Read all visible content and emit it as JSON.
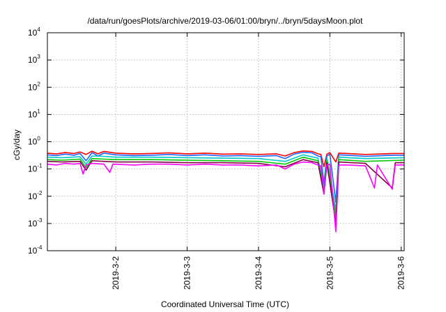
{
  "chart_data": {
    "type": "line",
    "title": "/data/run/goesPlots/archive/2019-03-06/01:00/bryn/../bryn/5daysMoon.plot",
    "xlabel": "Coordinated Universal Time (UTC)",
    "ylabel": "cGy/day",
    "y_scale": "log",
    "ylim": [
      0.0001,
      10000
    ],
    "y_ticks": [
      {
        "base": "10",
        "exp": "4",
        "value": 10000
      },
      {
        "base": "10",
        "exp": "3",
        "value": 1000
      },
      {
        "base": "10",
        "exp": "2",
        "value": 100
      },
      {
        "base": "10",
        "exp": "1",
        "value": 10
      },
      {
        "base": "10",
        "exp": "0",
        "value": 1
      },
      {
        "base": "10",
        "exp": "-1",
        "value": 0.1
      },
      {
        "base": "10",
        "exp": "-2",
        "value": 0.01
      },
      {
        "base": "10",
        "exp": "-3",
        "value": 0.001
      },
      {
        "base": "10",
        "exp": "-4",
        "value": 0.0001
      }
    ],
    "xlim": [
      "2019-03-01 01:00",
      "2019-03-06 01:00"
    ],
    "x_ticks": [
      {
        "label": "2019-3-2",
        "value": "2019-03-02 00:00"
      },
      {
        "label": "2019-3-3",
        "value": "2019-03-03 00:00"
      },
      {
        "label": "2019-3-4",
        "value": "2019-03-04 00:00"
      },
      {
        "label": "2019-3-5",
        "value": "2019-03-05 00:00"
      },
      {
        "label": "2019-3-6",
        "value": "2019-03-06 00:00"
      }
    ],
    "grid": true,
    "series": [
      {
        "color": "#ff0000",
        "points": [
          [
            "2019-03-01 01:00",
            0.38
          ],
          [
            "2019-03-01 04:00",
            0.36
          ],
          [
            "2019-03-01 07:00",
            0.4
          ],
          [
            "2019-03-01 10:00",
            0.37
          ],
          [
            "2019-03-01 12:00",
            0.42
          ],
          [
            "2019-03-01 14:00",
            0.34
          ],
          [
            "2019-03-01 16:00",
            0.45
          ],
          [
            "2019-03-01 18:00",
            0.36
          ],
          [
            "2019-03-01 20:00",
            0.44
          ],
          [
            "2019-03-02 00:00",
            0.38
          ],
          [
            "2019-03-02 06:00",
            0.36
          ],
          [
            "2019-03-02 12:00",
            0.37
          ],
          [
            "2019-03-02 18:00",
            0.39
          ],
          [
            "2019-03-03 00:00",
            0.36
          ],
          [
            "2019-03-03 06:00",
            0.38
          ],
          [
            "2019-03-03 12:00",
            0.35
          ],
          [
            "2019-03-03 18:00",
            0.36
          ],
          [
            "2019-03-04 00:00",
            0.34
          ],
          [
            "2019-03-04 06:00",
            0.36
          ],
          [
            "2019-03-04 09:00",
            0.3
          ],
          [
            "2019-03-04 12:00",
            0.4
          ],
          [
            "2019-03-04 15:00",
            0.46
          ],
          [
            "2019-03-04 18:00",
            0.44
          ],
          [
            "2019-03-04 20:00",
            0.36
          ],
          [
            "2019-03-04 21:00",
            0.34
          ],
          [
            "2019-03-04 22:00",
            0.12
          ],
          [
            "2019-03-04 23:00",
            0.35
          ],
          [
            "2019-03-05 00:00",
            0.4
          ],
          [
            "2019-03-05 02:00",
            0.18
          ],
          [
            "2019-03-05 03:00",
            0.38
          ],
          [
            "2019-03-05 06:00",
            0.37
          ],
          [
            "2019-03-05 12:00",
            0.34
          ],
          [
            "2019-03-05 18:00",
            0.36
          ],
          [
            "2019-03-05 21:00",
            0.37
          ],
          [
            "2019-03-06 01:00",
            0.37
          ]
        ]
      },
      {
        "color": "#1e64ff",
        "points": [
          [
            "2019-03-01 01:00",
            0.33
          ],
          [
            "2019-03-01 04:00",
            0.31
          ],
          [
            "2019-03-01 07:00",
            0.35
          ],
          [
            "2019-03-01 10:00",
            0.32
          ],
          [
            "2019-03-01 12:00",
            0.37
          ],
          [
            "2019-03-01 14:00",
            0.2
          ],
          [
            "2019-03-01 16:00",
            0.4
          ],
          [
            "2019-03-01 18:00",
            0.3
          ],
          [
            "2019-03-01 20:00",
            0.38
          ],
          [
            "2019-03-02 00:00",
            0.33
          ],
          [
            "2019-03-02 06:00",
            0.31
          ],
          [
            "2019-03-02 12:00",
            0.32
          ],
          [
            "2019-03-02 18:00",
            0.34
          ],
          [
            "2019-03-03 00:00",
            0.31
          ],
          [
            "2019-03-03 06:00",
            0.33
          ],
          [
            "2019-03-03 12:00",
            0.3
          ],
          [
            "2019-03-03 18:00",
            0.31
          ],
          [
            "2019-03-04 00:00",
            0.29
          ],
          [
            "2019-03-04 06:00",
            0.31
          ],
          [
            "2019-03-04 09:00",
            0.24
          ],
          [
            "2019-03-04 12:00",
            0.35
          ],
          [
            "2019-03-04 15:00",
            0.41
          ],
          [
            "2019-03-04 18:00",
            0.39
          ],
          [
            "2019-03-04 20:00",
            0.3
          ],
          [
            "2019-03-04 21:00",
            0.28
          ],
          [
            "2019-03-04 22:00",
            0.03
          ],
          [
            "2019-03-04 23:00",
            0.3
          ],
          [
            "2019-03-05 00:00",
            0.35
          ],
          [
            "2019-03-05 02:00",
            0.006
          ],
          [
            "2019-03-05 03:00",
            0.33
          ],
          [
            "2019-03-05 06:00",
            0.32
          ],
          [
            "2019-03-05 12:00",
            0.29
          ],
          [
            "2019-03-05 18:00",
            0.31
          ],
          [
            "2019-03-05 21:00",
            0.32
          ],
          [
            "2019-03-06 01:00",
            0.32
          ]
        ]
      },
      {
        "color": "#00c8c8",
        "points": [
          [
            "2019-03-01 01:00",
            0.27
          ],
          [
            "2019-03-01 06:00",
            0.26
          ],
          [
            "2019-03-01 12:00",
            0.28
          ],
          [
            "2019-03-01 14:00",
            0.15
          ],
          [
            "2019-03-01 16:00",
            0.3
          ],
          [
            "2019-03-01 20:00",
            0.29
          ],
          [
            "2019-03-02 00:00",
            0.27
          ],
          [
            "2019-03-02 12:00",
            0.27
          ],
          [
            "2019-03-03 00:00",
            0.26
          ],
          [
            "2019-03-03 12:00",
            0.25
          ],
          [
            "2019-03-04 00:00",
            0.24
          ],
          [
            "2019-03-04 09:00",
            0.19
          ],
          [
            "2019-03-04 15:00",
            0.33
          ],
          [
            "2019-03-04 20:00",
            0.25
          ],
          [
            "2019-03-04 22:00",
            0.02
          ],
          [
            "2019-03-04 23:00",
            0.25
          ],
          [
            "2019-03-05 02:00",
            0.003
          ],
          [
            "2019-03-05 03:00",
            0.27
          ],
          [
            "2019-03-05 12:00",
            0.24
          ],
          [
            "2019-03-06 01:00",
            0.26
          ]
        ]
      },
      {
        "color": "#00c800",
        "points": [
          [
            "2019-03-01 01:00",
            0.22
          ],
          [
            "2019-03-01 06:00",
            0.21
          ],
          [
            "2019-03-01 12:00",
            0.23
          ],
          [
            "2019-03-01 14:00",
            0.11
          ],
          [
            "2019-03-01 16:00",
            0.24
          ],
          [
            "2019-03-01 20:00",
            0.23
          ],
          [
            "2019-03-02 00:00",
            0.22
          ],
          [
            "2019-03-02 12:00",
            0.22
          ],
          [
            "2019-03-03 00:00",
            0.21
          ],
          [
            "2019-03-03 12:00",
            0.2
          ],
          [
            "2019-03-04 00:00",
            0.19
          ],
          [
            "2019-03-04 09:00",
            0.15
          ],
          [
            "2019-03-04 15:00",
            0.27
          ],
          [
            "2019-03-04 20:00",
            0.2
          ],
          [
            "2019-03-04 22:00",
            0.015
          ],
          [
            "2019-03-04 23:00",
            0.2
          ],
          [
            "2019-03-05 02:00",
            0.002
          ],
          [
            "2019-03-05 03:00",
            0.22
          ],
          [
            "2019-03-05 12:00",
            0.19
          ],
          [
            "2019-03-06 01:00",
            0.21
          ]
        ]
      },
      {
        "color": "#800040",
        "points": [
          [
            "2019-03-01 01:00",
            0.19
          ],
          [
            "2019-03-01 06:00",
            0.18
          ],
          [
            "2019-03-01 12:00",
            0.19
          ],
          [
            "2019-03-01 14:00",
            0.09
          ],
          [
            "2019-03-01 16:00",
            0.2
          ],
          [
            "2019-03-01 20:00",
            0.19
          ],
          [
            "2019-03-02 00:00",
            0.18
          ],
          [
            "2019-03-02 12:00",
            0.18
          ],
          [
            "2019-03-03 00:00",
            0.17
          ],
          [
            "2019-03-03 12:00",
            0.17
          ],
          [
            "2019-03-04 00:00",
            0.16
          ],
          [
            "2019-03-04 09:00",
            0.12
          ],
          [
            "2019-03-04 15:00",
            0.22
          ],
          [
            "2019-03-04 20:00",
            0.17
          ],
          [
            "2019-03-04 22:00",
            0.012
          ],
          [
            "2019-03-04 23:00",
            0.17
          ],
          [
            "2019-03-05 02:00",
            0.001
          ],
          [
            "2019-03-05 03:00",
            0.18
          ],
          [
            "2019-03-05 12:00",
            0.16
          ],
          [
            "2019-03-05 21:00",
            0.02
          ],
          [
            "2019-03-05 22:00",
            0.17
          ],
          [
            "2019-03-06 01:00",
            0.17
          ]
        ]
      },
      {
        "color": "#ff00ff",
        "points": [
          [
            "2019-03-01 01:00",
            0.15
          ],
          [
            "2019-03-01 04:00",
            0.14
          ],
          [
            "2019-03-01 07:00",
            0.16
          ],
          [
            "2019-03-01 10:00",
            0.15
          ],
          [
            "2019-03-01 12:00",
            0.16
          ],
          [
            "2019-03-01 13:00",
            0.065
          ],
          [
            "2019-03-01 14:00",
            0.14
          ],
          [
            "2019-03-01 16:00",
            0.16
          ],
          [
            "2019-03-01 20:00",
            0.15
          ],
          [
            "2019-03-01 22:00",
            0.075
          ],
          [
            "2019-03-01 23:00",
            0.15
          ],
          [
            "2019-03-02 06:00",
            0.14
          ],
          [
            "2019-03-02 12:00",
            0.15
          ],
          [
            "2019-03-02 18:00",
            0.15
          ],
          [
            "2019-03-03 00:00",
            0.14
          ],
          [
            "2019-03-03 06:00",
            0.15
          ],
          [
            "2019-03-03 12:00",
            0.14
          ],
          [
            "2019-03-03 18:00",
            0.14
          ],
          [
            "2019-03-04 00:00",
            0.13
          ],
          [
            "2019-03-04 06:00",
            0.14
          ],
          [
            "2019-03-04 09:00",
            0.1
          ],
          [
            "2019-03-04 12:00",
            0.15
          ],
          [
            "2019-03-04 15:00",
            0.18
          ],
          [
            "2019-03-04 18:00",
            0.17
          ],
          [
            "2019-03-04 20:00",
            0.14
          ],
          [
            "2019-03-04 21:00",
            0.13
          ],
          [
            "2019-03-04 22:00",
            0.012
          ],
          [
            "2019-03-04 23:00",
            0.14
          ],
          [
            "2019-03-05 00:00",
            0.15
          ],
          [
            "2019-03-05 02:00",
            0.0005
          ],
          [
            "2019-03-05 03:00",
            0.14
          ],
          [
            "2019-03-05 06:00",
            0.14
          ],
          [
            "2019-03-05 12:00",
            0.13
          ],
          [
            "2019-03-05 15:00",
            0.02
          ],
          [
            "2019-03-05 16:00",
            0.14
          ],
          [
            "2019-03-05 21:00",
            0.018
          ],
          [
            "2019-03-05 22:00",
            0.14
          ],
          [
            "2019-03-06 01:00",
            0.14
          ]
        ]
      }
    ]
  }
}
